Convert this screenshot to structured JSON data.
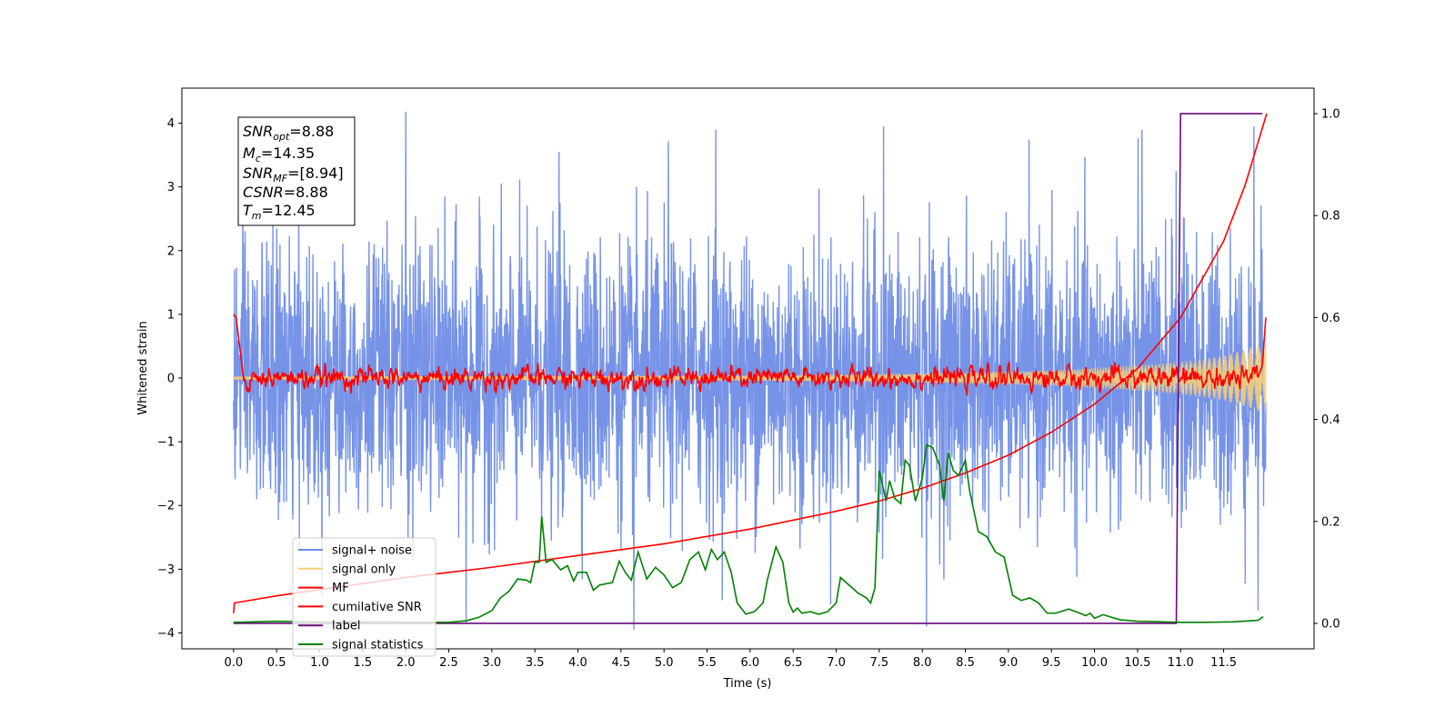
{
  "chart_data": {
    "type": "line",
    "title": "",
    "xlabel": "Time (s)",
    "ylabel": "Whitened strain",
    "ylabel_right": "",
    "xlim": [
      -0.6,
      12.55
    ],
    "ylim": [
      -4.25,
      4.55
    ],
    "ylim_right": [
      -0.05,
      1.05
    ],
    "x_ticks": [
      "0.0",
      "0.5",
      "1.0",
      "1.5",
      "2.0",
      "2.5",
      "3.0",
      "3.5",
      "4.0",
      "4.5",
      "5.0",
      "5.5",
      "6.0",
      "6.5",
      "7.0",
      "7.5",
      "8.0",
      "8.5",
      "9.0",
      "9.5",
      "10.0",
      "10.5",
      "11.0",
      "11.5"
    ],
    "y_ticks_left": [
      "−4",
      "−3",
      "−2",
      "−1",
      "0",
      "1",
      "2",
      "3",
      "4"
    ],
    "y_ticks_right": [
      "0.0",
      "0.2",
      "0.4",
      "0.6",
      "0.8",
      "1.0"
    ],
    "annotation": {
      "snr_opt": {
        "base": "SNR",
        "sub": "opt",
        "value": "=8.88"
      },
      "mc": {
        "base": "M",
        "sub": "c",
        "value": "=14.35"
      },
      "snr_mf": {
        "base": "SNR",
        "sub": "MF",
        "value": "=[8.94]"
      },
      "csnr": {
        "base": "CSNR",
        "sub": "",
        "value": "=8.88"
      },
      "tm": {
        "base": "T",
        "sub": "m",
        "value": "=12.45"
      }
    },
    "legend_placement": "lower-left",
    "legend": [
      {
        "name": "signal+ noise",
        "color": "#6f8de6"
      },
      {
        "name": "signal only",
        "color": "#f5cd7a"
      },
      {
        "name": "MF",
        "color": "#ff0000"
      },
      {
        "name": "cumilative SNR",
        "color": "#ff0000"
      },
      {
        "name": "label",
        "color": "#6a0a7a"
      },
      {
        "name": "signal statistics",
        "color": "#008000"
      }
    ],
    "series": [
      {
        "name": "signal+ noise",
        "axis": "left",
        "color": "#6f8de6",
        "x_range": [
          0.0,
          11.99
        ],
        "y_range_approx": [
          -3.7,
          4.2
        ],
        "peaks": [
          [
            2.0,
            4.18
          ],
          [
            3.78,
            3.55
          ],
          [
            5.05,
            3.72
          ],
          [
            5.6,
            3.9
          ],
          [
            7.55,
            3.95
          ],
          [
            10.55,
            3.9
          ],
          [
            10.95,
            3.25
          ],
          [
            11.85,
            3.95
          ],
          [
            2.7,
            -3.85
          ],
          [
            4.65,
            -3.95
          ],
          [
            8.05,
            -3.9
          ],
          [
            11.9,
            -3.65
          ]
        ]
      },
      {
        "name": "signal only",
        "axis": "left",
        "color": "#f5cd7a",
        "x_range": [
          0.0,
          11.99
        ],
        "envelope": [
          [
            0.0,
            0.02
          ],
          [
            6.0,
            0.04
          ],
          [
            8.0,
            0.07
          ],
          [
            9.5,
            0.12
          ],
          [
            10.5,
            0.2
          ],
          [
            11.0,
            0.25
          ],
          [
            11.5,
            0.35
          ],
          [
            11.99,
            0.55
          ]
        ]
      },
      {
        "name": "MF",
        "axis": "left",
        "color": "#ff0000",
        "x_range": [
          0.0,
          11.99
        ],
        "points": [
          [
            0.0,
            1.0
          ],
          [
            0.03,
            0.95
          ],
          [
            0.08,
            0.4
          ],
          [
            0.12,
            -0.05
          ],
          [
            0.2,
            0.1
          ],
          [
            0.3,
            -0.08
          ],
          [
            11.9,
            0.02
          ],
          [
            11.95,
            0.2
          ],
          [
            11.99,
            0.95
          ]
        ]
      },
      {
        "name": "cumilative SNR",
        "axis": "right",
        "color": "#ff0000",
        "points": [
          [
            0.0,
            0.02
          ],
          [
            0.01,
            0.04
          ],
          [
            0.5,
            0.054
          ],
          [
            1.0,
            0.066
          ],
          [
            2.0,
            0.09
          ],
          [
            3.0,
            0.11
          ],
          [
            4.0,
            0.133
          ],
          [
            5.0,
            0.156
          ],
          [
            6.0,
            0.185
          ],
          [
            7.0,
            0.22
          ],
          [
            7.5,
            0.24
          ],
          [
            8.0,
            0.265
          ],
          [
            8.5,
            0.295
          ],
          [
            9.0,
            0.33
          ],
          [
            9.5,
            0.375
          ],
          [
            10.0,
            0.43
          ],
          [
            10.5,
            0.5
          ],
          [
            11.0,
            0.6
          ],
          [
            11.5,
            0.75
          ],
          [
            11.75,
            0.86
          ],
          [
            12.0,
            1.0
          ]
        ]
      },
      {
        "name": "label",
        "axis": "right",
        "color": "#6a0a7a",
        "points": [
          [
            0.0,
            0.0
          ],
          [
            10.95,
            0.0
          ],
          [
            11.0,
            1.0
          ],
          [
            11.95,
            1.0
          ]
        ]
      },
      {
        "name": "signal statistics",
        "axis": "right",
        "color": "#008000",
        "points": [
          [
            0.0,
            0.002
          ],
          [
            0.5,
            0.004
          ],
          [
            1.0,
            0.003
          ],
          [
            1.5,
            0.003
          ],
          [
            2.0,
            0.002
          ],
          [
            2.5,
            0.002
          ],
          [
            2.7,
            0.005
          ],
          [
            2.85,
            0.012
          ],
          [
            3.0,
            0.025
          ],
          [
            3.1,
            0.05
          ],
          [
            3.2,
            0.063
          ],
          [
            3.3,
            0.087
          ],
          [
            3.4,
            0.085
          ],
          [
            3.45,
            0.08
          ],
          [
            3.5,
            0.12
          ],
          [
            3.55,
            0.12
          ],
          [
            3.58,
            0.21
          ],
          [
            3.63,
            0.12
          ],
          [
            3.7,
            0.125
          ],
          [
            3.8,
            0.105
          ],
          [
            3.88,
            0.113
          ],
          [
            3.95,
            0.083
          ],
          [
            4.0,
            0.1
          ],
          [
            4.1,
            0.1
          ],
          [
            4.18,
            0.065
          ],
          [
            4.25,
            0.075
          ],
          [
            4.4,
            0.08
          ],
          [
            4.48,
            0.122
          ],
          [
            4.55,
            0.1
          ],
          [
            4.62,
            0.085
          ],
          [
            4.7,
            0.14
          ],
          [
            4.8,
            0.087
          ],
          [
            4.9,
            0.11
          ],
          [
            5.0,
            0.095
          ],
          [
            5.1,
            0.07
          ],
          [
            5.2,
            0.08
          ],
          [
            5.3,
            0.125
          ],
          [
            5.4,
            0.14
          ],
          [
            5.48,
            0.105
          ],
          [
            5.55,
            0.145
          ],
          [
            5.62,
            0.125
          ],
          [
            5.7,
            0.14
          ],
          [
            5.78,
            0.1
          ],
          [
            5.85,
            0.04
          ],
          [
            5.95,
            0.018
          ],
          [
            6.05,
            0.023
          ],
          [
            6.15,
            0.04
          ],
          [
            6.2,
            0.085
          ],
          [
            6.3,
            0.15
          ],
          [
            6.38,
            0.12
          ],
          [
            6.45,
            0.04
          ],
          [
            6.5,
            0.022
          ],
          [
            6.55,
            0.03
          ],
          [
            6.6,
            0.02
          ],
          [
            6.7,
            0.023
          ],
          [
            6.8,
            0.018
          ],
          [
            6.9,
            0.023
          ],
          [
            7.0,
            0.04
          ],
          [
            7.05,
            0.09
          ],
          [
            7.15,
            0.075
          ],
          [
            7.25,
            0.06
          ],
          [
            7.35,
            0.05
          ],
          [
            7.4,
            0.04
          ],
          [
            7.45,
            0.07
          ],
          [
            7.5,
            0.3
          ],
          [
            7.58,
            0.24
          ],
          [
            7.62,
            0.28
          ],
          [
            7.68,
            0.245
          ],
          [
            7.75,
            0.235
          ],
          [
            7.8,
            0.32
          ],
          [
            7.85,
            0.31
          ],
          [
            7.92,
            0.24
          ],
          [
            8.0,
            0.285
          ],
          [
            8.05,
            0.35
          ],
          [
            8.12,
            0.345
          ],
          [
            8.2,
            0.31
          ],
          [
            8.25,
            0.24
          ],
          [
            8.3,
            0.335
          ],
          [
            8.36,
            0.3
          ],
          [
            8.42,
            0.29
          ],
          [
            8.5,
            0.32
          ],
          [
            8.55,
            0.26
          ],
          [
            8.65,
            0.18
          ],
          [
            8.75,
            0.17
          ],
          [
            8.85,
            0.14
          ],
          [
            8.95,
            0.13
          ],
          [
            9.05,
            0.055
          ],
          [
            9.15,
            0.045
          ],
          [
            9.25,
            0.05
          ],
          [
            9.35,
            0.04
          ],
          [
            9.45,
            0.02
          ],
          [
            9.55,
            0.02
          ],
          [
            9.7,
            0.028
          ],
          [
            9.8,
            0.022
          ],
          [
            9.9,
            0.015
          ],
          [
            9.95,
            0.02
          ],
          [
            10.0,
            0.01
          ],
          [
            10.1,
            0.017
          ],
          [
            10.2,
            0.012
          ],
          [
            10.3,
            0.007
          ],
          [
            10.5,
            0.004
          ],
          [
            10.8,
            0.003
          ],
          [
            11.0,
            0.002
          ],
          [
            11.3,
            0.002
          ],
          [
            11.6,
            0.003
          ],
          [
            11.8,
            0.005
          ],
          [
            11.9,
            0.006
          ],
          [
            11.96,
            0.013
          ]
        ]
      }
    ]
  }
}
